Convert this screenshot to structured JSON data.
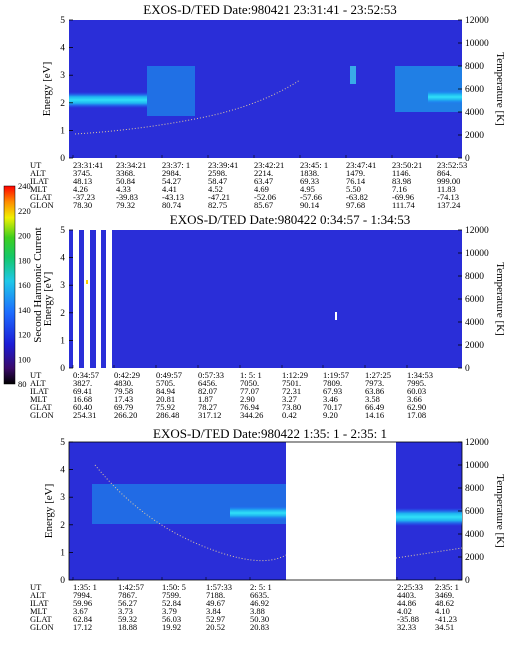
{
  "chart_data": [
    {
      "type": "heatmap",
      "title": "EXOS-D/TED  Date:980421  23:31:41 - 23:52:53",
      "ylabel": "Energy [eV]",
      "y2label": "Temperature [K]",
      "ylim": [
        0,
        5
      ],
      "y2lim": [
        0,
        12000
      ],
      "yticks": [
        "0",
        "1",
        "2",
        "3",
        "4",
        "5"
      ],
      "y2ticks": [
        "0",
        "2000",
        "4000",
        "6000",
        "8000",
        "10000",
        "12000"
      ],
      "ephemeris": {
        "labels": [
          "UT",
          "ALT",
          "ILAT",
          "MLT",
          "GLAT",
          "GLON"
        ],
        "columns": [
          [
            "23:31:41",
            "3745.",
            "48.13",
            "4.26",
            "-37.23",
            "78.30"
          ],
          [
            "23:34:21",
            "3368.",
            "50.84",
            "4.33",
            "-39.83",
            "79.32"
          ],
          [
            "23:37: 1",
            "2984.",
            "54.27",
            "4.41",
            "-43.13",
            "80.74"
          ],
          [
            "23:39:41",
            "2598.",
            "58.47",
            "4.52",
            "-47.21",
            "82.75"
          ],
          [
            "23:42:21",
            "2214.",
            "63.47",
            "4.69",
            "-52.06",
            "85.67"
          ],
          [
            "23:45: 1",
            "1838.",
            "69.33",
            "4.95",
            "-57.66",
            "90.14"
          ],
          [
            "23:47:41",
            "1479.",
            "76.14",
            "5.50",
            "-63.82",
            "97.68"
          ],
          [
            "23:50:21",
            "1146.",
            "83.98",
            "7.16",
            "-69.96",
            "111.74"
          ],
          [
            "23:52:53",
            "864.",
            "999.00",
            "11.83",
            "-74.13",
            "137.24"
          ]
        ]
      }
    },
    {
      "type": "heatmap",
      "title": "EXOS-D/TED  Date:980422  0:34:57 - 1:34:53",
      "ylabel": "Energy [eV]",
      "y2label": "Temperature [K]",
      "ylim": [
        0,
        5
      ],
      "y2lim": [
        0,
        12000
      ],
      "yticks": [
        "0",
        "1",
        "2",
        "3",
        "4",
        "5"
      ],
      "y2ticks": [
        "0",
        "2000",
        "4000",
        "6000",
        "8000",
        "10000",
        "12000"
      ],
      "ephemeris": {
        "labels": [
          "UT",
          "ALT",
          "ILAT",
          "MLT",
          "GLAT",
          "GLON"
        ],
        "columns": [
          [
            "0:34:57",
            "3827.",
            "69.41",
            "16.68",
            "60.40",
            "254.31"
          ],
          [
            "0:42:29",
            "4830.",
            "79.58",
            "17.43",
            "69.79",
            "266.20"
          ],
          [
            "0:49:57",
            "5705.",
            "84.94",
            "20.81",
            "75.92",
            "286.48"
          ],
          [
            "0:57:33",
            "6456.",
            "82.07",
            "1.87",
            "78.27",
            "317.12"
          ],
          [
            "1: 5: 1",
            "7050.",
            "77.07",
            "2.90",
            "76.94",
            "344.26"
          ],
          [
            "1:12:29",
            "7501.",
            "72.31",
            "3.27",
            "73.80",
            "0.42"
          ],
          [
            "1:19:57",
            "7809.",
            "67.93",
            "3.46",
            "70.17",
            "9.20"
          ],
          [
            "1:27:25",
            "7973.",
            "63.86",
            "3.58",
            "66.49",
            "14.16"
          ],
          [
            "1:34:53",
            "7995.",
            "60.03",
            "3.66",
            "62.90",
            "17.08"
          ]
        ]
      }
    },
    {
      "type": "heatmap",
      "title": "EXOS-D/TED  Date:980422  1:35: 1 - 2:35: 1",
      "ylabel": "Energy [eV]",
      "y2label": "Temperature [K]",
      "ylim": [
        0,
        5
      ],
      "y2lim": [
        0,
        12000
      ],
      "yticks": [
        "0",
        "1",
        "2",
        "3",
        "4",
        "5"
      ],
      "y2ticks": [
        "0",
        "2000",
        "4000",
        "6000",
        "8000",
        "10000",
        "12000"
      ],
      "data_gap": true,
      "ephemeris": {
        "labels": [
          "UT",
          "ALT",
          "ILAT",
          "MLT",
          "GLAT",
          "GLON"
        ],
        "columns": [
          [
            "1:35: 1",
            "7994.",
            "59.96",
            "3.67",
            "62.84",
            "17.12"
          ],
          [
            "1:42:57",
            "7867.",
            "56.27",
            "3.73",
            "59.32",
            "18.88"
          ],
          [
            "1:50: 5",
            "7599.",
            "52.84",
            "3.79",
            "56.03",
            "19.92"
          ],
          [
            "1:57:33",
            "7188.",
            "49.67",
            "3.84",
            "52.97",
            "20.52"
          ],
          [
            "2: 5: 1",
            "6635.",
            "46.92",
            "3.88",
            "50.30",
            "20.83"
          ],
          [
            "2:25:33",
            "4403.",
            "44.86",
            "4.02",
            "-35.88",
            "32.33"
          ],
          [
            "2:35: 1",
            "3469.",
            "48.62",
            "4.10",
            "-41.23",
            "34.51"
          ]
        ]
      }
    }
  ],
  "colorbar": {
    "label": "Second Harmonic Current",
    "ticks": [
      "80",
      "100",
      "120",
      "140",
      "160",
      "180",
      "200",
      "220",
      "240"
    ],
    "colors": [
      "#000000",
      "#3a0a6a",
      "#1c1cd6",
      "#1d6cff",
      "#1fc8e8",
      "#14c86a",
      "#3ecf1e",
      "#f0f000",
      "#ff8c00",
      "#ff0000"
    ]
  }
}
